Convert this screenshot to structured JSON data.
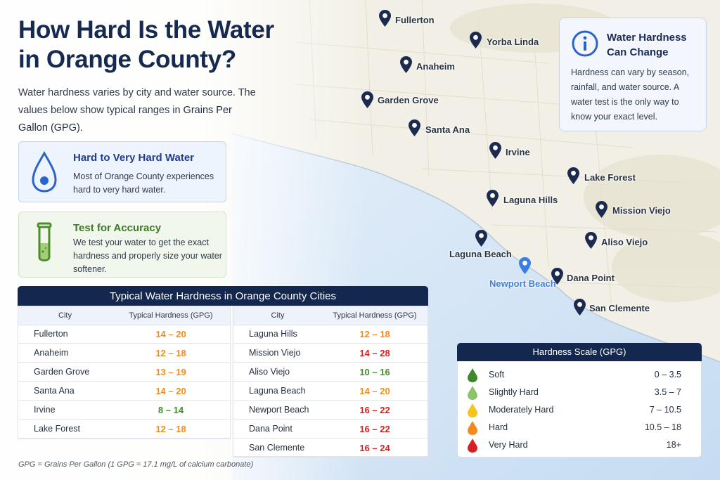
{
  "header": {
    "title": "How Hard Is the Water in Orange County?",
    "intro_line": "Water hardness varies by city and water source. The values below show typical ranges in",
    "intro_em": "Grains Per Gallon (GPG)."
  },
  "cards": [
    {
      "title": "Hard to Very Hard Water",
      "text": "Most of Orange County experiences hard to very hard water.",
      "icon": "water-drop-icon"
    },
    {
      "title": "Test for Accuracy",
      "text": "We test your water to get the exact hardness and properly size your water softener.",
      "icon": "test-tube-icon"
    }
  ],
  "info": {
    "title": "Water Hardness Can Change",
    "text": "Hardness can vary by season, rainfall, and water source. A water test is the only way to know your exact level.",
    "icon": "info-icon"
  },
  "map": {
    "pins": [
      {
        "name": "Fullerton",
        "highlight": false
      },
      {
        "name": "Yorba Linda",
        "highlight": false
      },
      {
        "name": "Anaheim",
        "highlight": false
      },
      {
        "name": "Garden Grove",
        "highlight": false
      },
      {
        "name": "Santa Ana",
        "highlight": false
      },
      {
        "name": "Irvine",
        "highlight": false
      },
      {
        "name": "Lake Forest",
        "highlight": false
      },
      {
        "name": "Laguna Hills",
        "highlight": false
      },
      {
        "name": "Mission Viejo",
        "highlight": false
      },
      {
        "name": "Laguna Beach",
        "highlight": false
      },
      {
        "name": "Aliso Viejo",
        "highlight": false
      },
      {
        "name": "Newport Beach",
        "highlight": true
      },
      {
        "name": "Dana Point",
        "highlight": false
      },
      {
        "name": "San Clemente",
        "highlight": false
      }
    ]
  },
  "table": {
    "title": "Typical Water Hardness in Orange County Cities",
    "col_city": "City",
    "col_hardness": "Typical Hardness (GPG)",
    "left_rows": [
      {
        "city": "Fullerton",
        "range": "14 – 20",
        "color": "#f28c1a"
      },
      {
        "city": "Anaheim",
        "range": "12 – 18",
        "color": "#f28c1a"
      },
      {
        "city": "Garden Grove",
        "range": "13 – 19",
        "color": "#f28c1a"
      },
      {
        "city": "Santa Ana",
        "range": "14 – 20",
        "color": "#f28c1a"
      },
      {
        "city": "Irvine",
        "range": "8 – 14",
        "color": "#3f8f2a"
      },
      {
        "city": "Lake Forest",
        "range": "12 – 18",
        "color": "#f28c1a"
      }
    ],
    "right_rows": [
      {
        "city": "Laguna Hills",
        "range": "12 – 18",
        "color": "#f28c1a"
      },
      {
        "city": "Mission Viejo",
        "range": "14 – 28",
        "color": "#d82222"
      },
      {
        "city": "Aliso Viejo",
        "range": "10 – 16",
        "color": "#3f8f2a"
      },
      {
        "city": "Laguna Beach",
        "range": "14 – 20",
        "color": "#f28c1a"
      },
      {
        "city": "Newport Beach",
        "range": "16 – 22",
        "color": "#d82222"
      },
      {
        "city": "Dana Point",
        "range": "16 – 22",
        "color": "#d82222"
      },
      {
        "city": "San Clemente",
        "range": "16 – 24",
        "color": "#d82222"
      }
    ]
  },
  "footnote": "GPG = Grains Per Gallon (1 GPG = 17.1 mg/L of calcium carbonate)",
  "scale": {
    "title": "Hardness Scale (GPG)",
    "levels": [
      {
        "name": "Soft",
        "range": "0 – 3.5",
        "color": "#3a8a2a"
      },
      {
        "name": "Slightly Hard",
        "range": "3.5 – 7",
        "color": "#8dc26a"
      },
      {
        "name": "Moderately Hard",
        "range": "7 – 10.5",
        "color": "#f6c21c"
      },
      {
        "name": "Hard",
        "range": "10.5 – 18",
        "color": "#f08a1e"
      },
      {
        "name": "Very Hard",
        "range": "18+",
        "color": "#d71f26"
      }
    ]
  },
  "colors": {
    "navy": "#14284f",
    "pin": "#1b2a4e",
    "pin_highlight": "#3b7de0",
    "ocean": "#cfe3f6"
  }
}
